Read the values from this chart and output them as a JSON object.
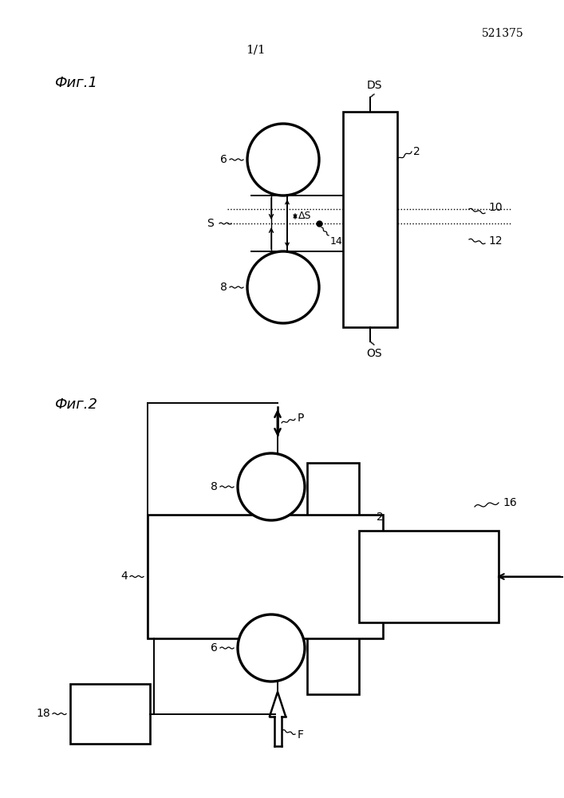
{
  "bg_color": "#ffffff",
  "line_color": "#000000",
  "fig1_label": "Фиг.1",
  "fig2_label": "Фиг.2",
  "page_num": "1/1",
  "patent_num": "521375",
  "lw": 1.4
}
